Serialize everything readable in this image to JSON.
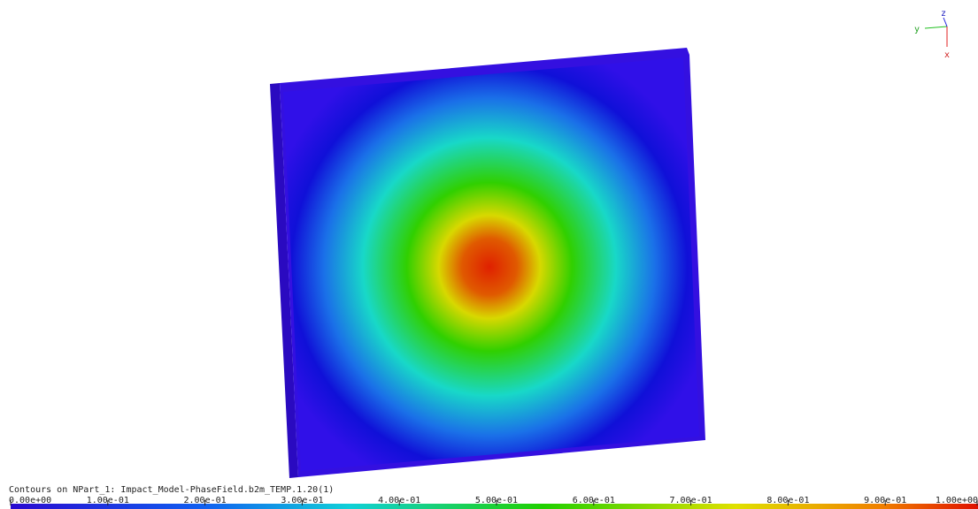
{
  "viewport": {
    "triad": {
      "x": "x",
      "y": "y",
      "z": "z"
    }
  },
  "legend": {
    "title": "Contours on NPart_1: Impact_Model-PhaseField.b2m_TEMP.1.20(1)",
    "lim": [
      0,
      1
    ],
    "ticks": [
      {
        "value": 0,
        "label": "0.00e+00"
      },
      {
        "value": 0.1,
        "label": "1.00e-01"
      },
      {
        "value": 0.2,
        "label": "2.00e-01"
      },
      {
        "value": 0.3,
        "label": "3.00e-01"
      },
      {
        "value": 0.4,
        "label": "4.00e-01"
      },
      {
        "value": 0.5,
        "label": "5.00e-01"
      },
      {
        "value": 0.6,
        "label": "6.00e-01"
      },
      {
        "value": 0.7,
        "label": "7.00e-01"
      },
      {
        "value": 0.8,
        "label": "8.00e-01"
      },
      {
        "value": 0.9,
        "label": "9.00e-01"
      },
      {
        "value": 1,
        "label": "1.00e+00"
      }
    ]
  }
}
